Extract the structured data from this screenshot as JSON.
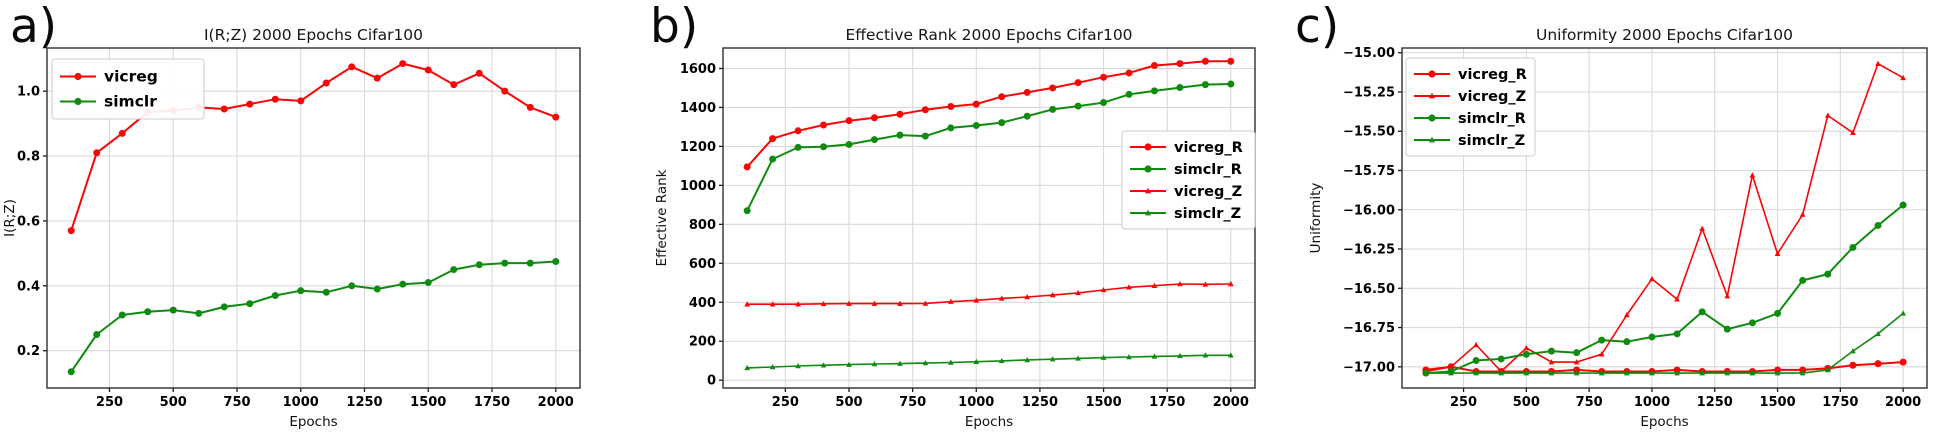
{
  "chart_data": [
    {
      "id": "a",
      "panel_label": "a)",
      "type": "line",
      "title": "I(R;Z) 2000 Epochs Cifar100",
      "xlabel": "Epochs",
      "ylabel": "I(R;Z)",
      "grid": true,
      "legend_position": "upper-left",
      "x": [
        100,
        200,
        300,
        400,
        500,
        600,
        700,
        800,
        900,
        1000,
        1100,
        1200,
        1300,
        1400,
        1500,
        1600,
        1700,
        1800,
        1900,
        2000
      ],
      "xlim": [
        5,
        2095
      ],
      "ylim": [
        0.085,
        1.133
      ],
      "xticks": {
        "values": [
          250,
          500,
          750,
          1000,
          1250,
          1500,
          1750,
          2000
        ],
        "labels": [
          "250",
          "500",
          "750",
          "1000",
          "1250",
          "1500",
          "1750",
          "2000"
        ]
      },
      "yticks": {
        "values": [
          0.2,
          0.4,
          0.6,
          0.8,
          1.0
        ],
        "labels": [
          "0.2",
          "0.4",
          "0.6",
          "0.8",
          "1.0"
        ]
      },
      "series": [
        {
          "name": "vicreg",
          "color": "#f80606",
          "marker": "circle",
          "values": [
            0.57,
            0.81,
            0.87,
            0.935,
            0.94,
            0.95,
            0.945,
            0.96,
            0.975,
            0.97,
            1.025,
            1.075,
            1.04,
            1.085,
            1.065,
            1.02,
            1.055,
            1.0,
            0.95,
            0.92
          ]
        },
        {
          "name": "simclr",
          "color": "#0f8b0f",
          "marker": "circle",
          "values": [
            0.135,
            0.25,
            0.31,
            0.32,
            0.325,
            0.315,
            0.335,
            0.345,
            0.37,
            0.385,
            0.38,
            0.4,
            0.39,
            0.405,
            0.41,
            0.45,
            0.465,
            0.47,
            0.47,
            0.475
          ]
        }
      ]
    },
    {
      "id": "b",
      "panel_label": "b)",
      "type": "line",
      "title": "Effective Rank 2000 Epochs Cifar100",
      "xlabel": "Epochs",
      "ylabel": "Effective Rank",
      "grid": true,
      "legend_position": "right-center",
      "x": [
        100,
        200,
        300,
        400,
        500,
        600,
        700,
        800,
        900,
        1000,
        1100,
        1200,
        1300,
        1400,
        1500,
        1600,
        1700,
        1800,
        1900,
        2000
      ],
      "xlim": [
        5,
        2095
      ],
      "ylim": [
        -40,
        1705
      ],
      "xticks": {
        "values": [
          250,
          500,
          750,
          1000,
          1250,
          1500,
          1750,
          2000
        ],
        "labels": [
          "250",
          "500",
          "750",
          "1000",
          "1250",
          "1500",
          "1750",
          "2000"
        ]
      },
      "yticks": {
        "values": [
          0,
          200,
          400,
          600,
          800,
          1000,
          1200,
          1400,
          1600
        ],
        "labels": [
          "0",
          "200",
          "400",
          "600",
          "800",
          "1000",
          "1200",
          "1400",
          "1600"
        ]
      },
      "series": [
        {
          "name": "vicreg_R",
          "color": "#f80606",
          "marker": "circle",
          "values": [
            1095,
            1240,
            1280,
            1310,
            1332,
            1347,
            1365,
            1388,
            1405,
            1417,
            1455,
            1477,
            1500,
            1527,
            1555,
            1577,
            1615,
            1625,
            1637,
            1637
          ]
        },
        {
          "name": "simclr_R",
          "color": "#0f8b0f",
          "marker": "circle",
          "values": [
            870,
            1135,
            1195,
            1198,
            1210,
            1235,
            1258,
            1253,
            1295,
            1307,
            1322,
            1355,
            1390,
            1407,
            1425,
            1467,
            1485,
            1502,
            1517,
            1520
          ]
        },
        {
          "name": "vicreg_Z",
          "color": "#f80606",
          "marker": "triangle",
          "values": [
            390,
            390,
            390,
            392,
            393,
            393,
            393,
            394,
            403,
            410,
            420,
            427,
            437,
            448,
            463,
            477,
            485,
            494,
            492,
            494
          ]
        },
        {
          "name": "simclr_Z",
          "color": "#0f8b0f",
          "marker": "triangle",
          "values": [
            63,
            68,
            73,
            77,
            80,
            83,
            85,
            88,
            91,
            95,
            99,
            104,
            108,
            112,
            116,
            119,
            122,
            125,
            128,
            128
          ]
        }
      ]
    },
    {
      "id": "c",
      "panel_label": "c)",
      "type": "line",
      "title": "Uniformity 2000 Epochs Cifar100",
      "xlabel": "Epochs",
      "ylabel": "Uniformity",
      "grid": true,
      "legend_position": "upper-left",
      "x": [
        100,
        200,
        300,
        400,
        500,
        600,
        700,
        800,
        900,
        1000,
        1100,
        1200,
        1300,
        1400,
        1500,
        1600,
        1700,
        1800,
        1900,
        2000
      ],
      "xlim": [
        5,
        2095
      ],
      "ylim": [
        -17.135,
        -14.97
      ],
      "xticks": {
        "values": [
          250,
          500,
          750,
          1000,
          1250,
          1500,
          1750,
          2000
        ],
        "labels": [
          "250",
          "500",
          "750",
          "1000",
          "1250",
          "1500",
          "1750",
          "2000"
        ]
      },
      "yticks": {
        "values": [
          -15.0,
          -15.25,
          -15.5,
          -15.75,
          -16.0,
          -16.25,
          -16.5,
          -16.75,
          -17.0
        ],
        "labels": [
          "−15.00",
          "−15.25",
          "−15.50",
          "−15.75",
          "−16.00",
          "−16.25",
          "−16.50",
          "−16.75",
          "−17.00"
        ]
      },
      "series": [
        {
          "name": "vicreg_R",
          "color": "#f80606",
          "marker": "circle",
          "values": [
            -17.02,
            -17.0,
            -17.03,
            -17.03,
            -17.03,
            -17.03,
            -17.02,
            -17.03,
            -17.03,
            -17.03,
            -17.02,
            -17.03,
            -17.03,
            -17.03,
            -17.02,
            -17.02,
            -17.01,
            -16.99,
            -16.98,
            -16.97
          ]
        },
        {
          "name": "vicreg_Z",
          "color": "#f80606",
          "marker": "triangle",
          "values": [
            -17.03,
            -17.0,
            -16.86,
            -17.03,
            -16.88,
            -16.97,
            -16.97,
            -16.92,
            -16.67,
            -16.44,
            -16.57,
            -16.12,
            -16.55,
            -15.78,
            -16.28,
            -16.03,
            -15.4,
            -15.51,
            -15.07,
            -15.16
          ]
        },
        {
          "name": "simclr_R",
          "color": "#0f8b0f",
          "marker": "circle",
          "values": [
            -17.04,
            -17.03,
            -16.96,
            -16.95,
            -16.92,
            -16.9,
            -16.91,
            -16.83,
            -16.84,
            -16.81,
            -16.79,
            -16.65,
            -16.76,
            -16.72,
            -16.66,
            -16.45,
            -16.41,
            -16.24,
            -16.1,
            -15.97
          ]
        },
        {
          "name": "simclr_Z",
          "color": "#0f8b0f",
          "marker": "triangle",
          "values": [
            -17.04,
            -17.04,
            -17.04,
            -17.04,
            -17.04,
            -17.04,
            -17.04,
            -17.04,
            -17.04,
            -17.04,
            -17.04,
            -17.04,
            -17.04,
            -17.04,
            -17.04,
            -17.04,
            -17.02,
            -16.9,
            -16.79,
            -16.66
          ]
        }
      ]
    }
  ],
  "style": {
    "grid_color": "#d9d9d9",
    "frame_color": "#2f2f2f",
    "tick_color": "#1a1a1a",
    "text_color": "#000000",
    "legend_border": "#cccccc",
    "legend_bg": "#ffffff"
  }
}
